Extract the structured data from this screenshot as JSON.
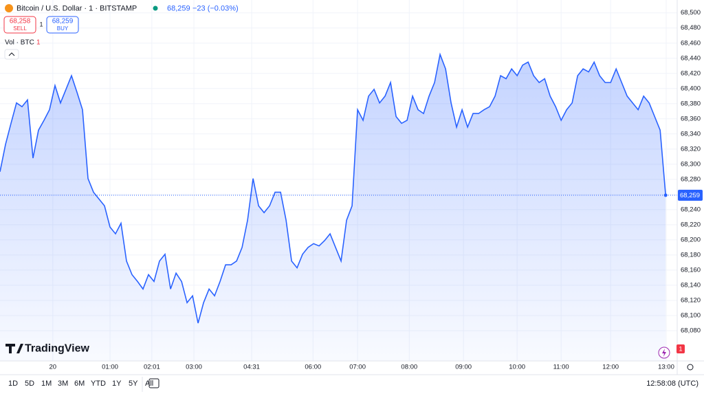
{
  "header": {
    "symbol": "Bitcoin / U.S. Dollar · 1 · BITSTAMP",
    "price": "68,259",
    "change": "−23 (−0.03%)",
    "sell_price": "68,258",
    "sell": "SELL",
    "spread": "1",
    "buy_price": "68,259",
    "buy": "BUY",
    "volume_label": "Vol · BTC",
    "volume_count": "1",
    "logo": "TradingView",
    "alert_badge": "1"
  },
  "toolbar": {
    "ranges": [
      "1D",
      "5D",
      "1M",
      "3M",
      "6M",
      "YTD",
      "1Y",
      "5Y",
      "All"
    ],
    "clock": "12:58:08 (UTC)"
  },
  "chart_data": {
    "type": "area",
    "color": "#2962ff",
    "grid": true,
    "values": [
      68290,
      68326,
      68354,
      68381,
      68376,
      68385,
      68308,
      68345,
      68358,
      68372,
      68404,
      68381,
      68399,
      68417,
      68395,
      68372,
      68281,
      68263,
      68254,
      68245,
      68217,
      68208,
      68222,
      68172,
      68154,
      68145,
      68135,
      68154,
      68145,
      68172,
      68181,
      68135,
      68156,
      68145,
      68117,
      68126,
      68090,
      68117,
      68135,
      68126,
      68145,
      68167,
      68167,
      68172,
      68190,
      68226,
      68281,
      68245,
      68236,
      68245,
      68263,
      68263,
      68226,
      68172,
      68163,
      68181,
      68190,
      68195,
      68192,
      68199,
      68208,
      68190,
      68172,
      68226,
      68245,
      68372,
      68358,
      68390,
      68399,
      68381,
      68390,
      68408,
      68363,
      68354,
      68358,
      68390,
      68372,
      68367,
      68390,
      68408,
      68445,
      68426,
      68381,
      68349,
      68372,
      68349,
      68367,
      68367,
      68372,
      68376,
      68390,
      68417,
      68413,
      68426,
      68417,
      68431,
      68435,
      68417,
      68408,
      68413,
      68390,
      68376,
      68358,
      68372,
      68381,
      68417,
      68426,
      68422,
      68435,
      68417,
      68408,
      68408,
      68426,
      68408,
      68390,
      68381,
      68372,
      68390,
      68381,
      68363,
      68345,
      68259
    ],
    "value_labels": {
      "121": "68,259"
    },
    "xlim": [
      0,
      123.1
    ],
    "xticks": [
      {
        "value": 9.6,
        "label": "20"
      },
      {
        "value": 20,
        "label": "01:00"
      },
      {
        "value": 27.6,
        "label": "02:01"
      },
      {
        "value": 35.25,
        "label": "03:00"
      },
      {
        "value": 45.75,
        "label": "04:31"
      },
      {
        "value": 56.9,
        "label": "06:00"
      },
      {
        "value": 65,
        "label": "07:00"
      },
      {
        "value": 74.4,
        "label": "08:00"
      },
      {
        "value": 84.25,
        "label": "09:00"
      },
      {
        "value": 94,
        "label": "10:00"
      },
      {
        "value": 102,
        "label": "11:00"
      },
      {
        "value": 111,
        "label": "12:00"
      },
      {
        "value": 121.1,
        "label": "13:00"
      }
    ],
    "ylim": [
      68040,
      68517
    ],
    "yticks": [
      {
        "value": 68080,
        "label": "68,080"
      },
      {
        "value": 68100,
        "label": "68,100"
      },
      {
        "value": 68120,
        "label": "68,120"
      },
      {
        "value": 68140,
        "label": "68,140"
      },
      {
        "value": 68160,
        "label": "68,160"
      },
      {
        "value": 68180,
        "label": "68,180"
      },
      {
        "value": 68200,
        "label": "68,200"
      },
      {
        "value": 68220,
        "label": "68,220"
      },
      {
        "value": 68240,
        "label": "68,240"
      },
      {
        "value": 68260,
        "label": "68,260"
      },
      {
        "value": 68280,
        "label": "68,280"
      },
      {
        "value": 68300,
        "label": "68,300"
      },
      {
        "value": 68320,
        "label": "68,320"
      },
      {
        "value": 68340,
        "label": "68,340"
      },
      {
        "value": 68360,
        "label": "68,360"
      },
      {
        "value": 68380,
        "label": "68,380"
      },
      {
        "value": 68400,
        "label": "68,400"
      },
      {
        "value": 68420,
        "label": "68,420"
      },
      {
        "value": 68440,
        "label": "68,440"
      },
      {
        "value": 68460,
        "label": "68,460"
      },
      {
        "value": 68480,
        "label": "68,480"
      },
      {
        "value": 68500,
        "label": "68,500"
      }
    ]
  }
}
